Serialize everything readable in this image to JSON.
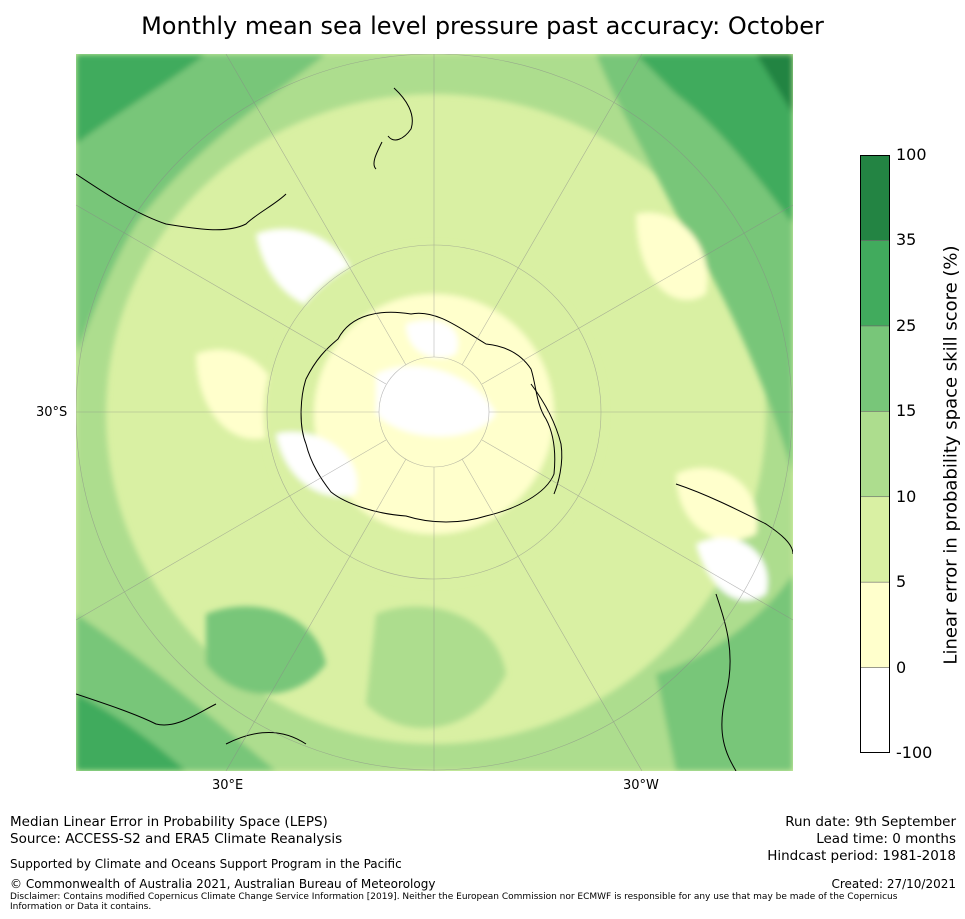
{
  "title": "Monthly mean sea level pressure past accuracy: October",
  "map": {
    "projection": "south-polar-stereographic",
    "lat_labels": [
      "30°S"
    ],
    "lon_labels": [
      "30°E",
      "30°W"
    ],
    "colors": {
      "ocean_base": "#d9f0a3",
      "land_line": "#000000",
      "grid": "#888888"
    }
  },
  "colorbar": {
    "label": "Linear error in probability space skill score (%)",
    "ticks": [
      "-100",
      "0",
      "5",
      "10",
      "15",
      "25",
      "35",
      "100"
    ],
    "bins": [
      {
        "from": -100,
        "to": 0,
        "color": "#ffffff"
      },
      {
        "from": 0,
        "to": 5,
        "color": "#ffffcc"
      },
      {
        "from": 5,
        "to": 10,
        "color": "#d9f0a3"
      },
      {
        "from": 10,
        "to": 15,
        "color": "#addd8e"
      },
      {
        "from": 15,
        "to": 25,
        "color": "#78c679"
      },
      {
        "from": 25,
        "to": 35,
        "color": "#41ab5d"
      },
      {
        "from": 35,
        "to": 100,
        "color": "#238443"
      }
    ]
  },
  "footer": {
    "left_line1": "Median Linear Error in Probability Space (LEPS)",
    "left_line2": "Source: ACCESS-S2 and ERA5 Climate Reanalysis",
    "support": "Supported by Climate and Oceans Support Program in the Pacific",
    "copyright": "© Commonwealth of Australia 2021, Australian Bureau of Meteorology",
    "disclaimer": "Disclaimer: Contains modified Copernicus Climate Change Service Information [2019]. Neither the European Commission nor ECMWF is responsible for any use that may be made of the Copernicus Information or Data it contains.",
    "run_date": "Run date: 9th September",
    "lead_time": "Lead time: 0 months",
    "hindcast": "Hindcast period: 1981-2018",
    "created": "Created: 27/10/2021"
  }
}
